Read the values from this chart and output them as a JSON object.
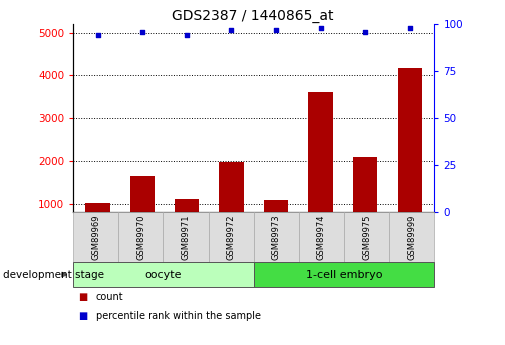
{
  "title": "GDS2387 / 1440865_at",
  "samples": [
    "GSM89969",
    "GSM89970",
    "GSM89971",
    "GSM89972",
    "GSM89973",
    "GSM89974",
    "GSM89975",
    "GSM89999"
  ],
  "counts": [
    1020,
    1650,
    1100,
    1980,
    1080,
    3620,
    2100,
    4180
  ],
  "percentile_ranks": [
    94,
    96,
    94,
    97,
    97,
    98,
    96,
    98
  ],
  "groups": [
    {
      "label": "oocyte",
      "start": 0,
      "end": 4,
      "color": "#bbffbb"
    },
    {
      "label": "1-cell embryo",
      "start": 4,
      "end": 8,
      "color": "#44dd44"
    }
  ],
  "bar_color": "#aa0000",
  "dot_color": "#0000cc",
  "ylim_left": [
    800,
    5200
  ],
  "ylim_right": [
    0,
    100
  ],
  "yticks_left": [
    1000,
    2000,
    3000,
    4000,
    5000
  ],
  "yticks_right": [
    0,
    25,
    50,
    75,
    100
  ],
  "grid_color": "#000000",
  "background_color": "#ffffff",
  "bar_width": 0.55,
  "legend_count_label": "count",
  "legend_percentile_label": "percentile rank within the sample",
  "dev_stage_label": "development stage"
}
